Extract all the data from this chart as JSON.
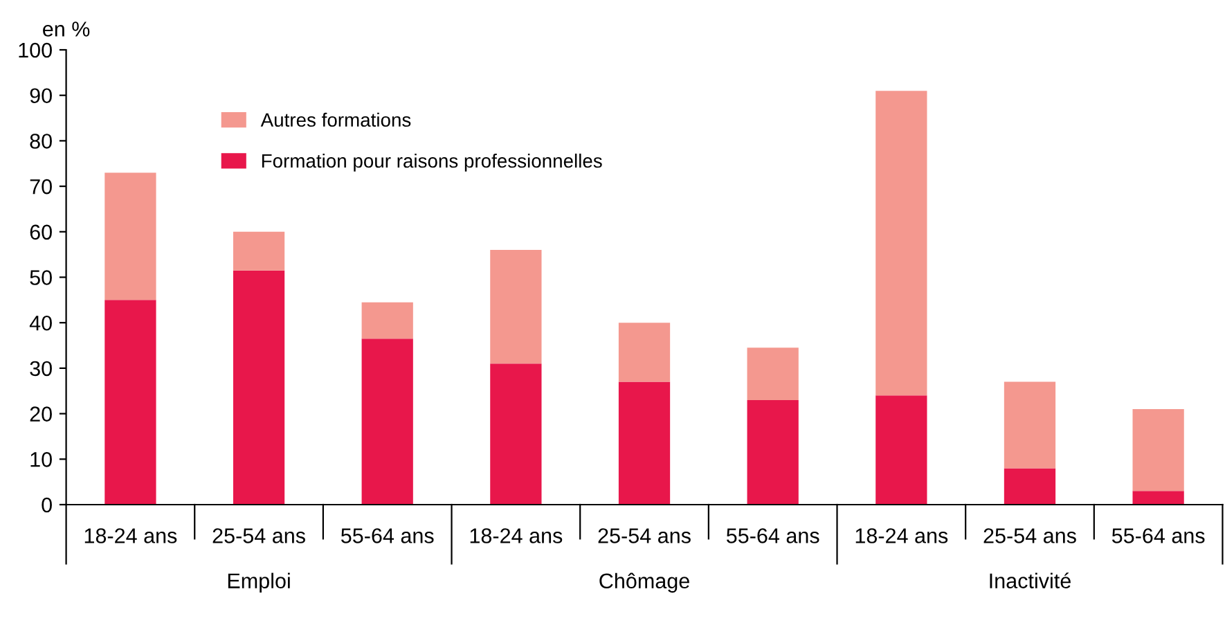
{
  "chart_data": {
    "type": "bar",
    "stacked": true,
    "ylabel": "en %",
    "categories": [
      "18-24 ans",
      "25-54 ans",
      "55-64 ans",
      "18-24 ans",
      "25-54 ans",
      "55-64 ans",
      "18-24 ans",
      "25-54 ans",
      "55-64 ans"
    ],
    "series": [
      {
        "name": "Formation pour raisons professionnelles",
        "color": "#e8174b",
        "values": [
          45,
          51.5,
          36.5,
          31,
          27,
          23,
          24,
          8,
          3
        ]
      },
      {
        "name": "Autres formations",
        "color": "#f4988f",
        "values": [
          28,
          8.5,
          8,
          25,
          13,
          11.5,
          67,
          19,
          18
        ]
      }
    ],
    "annotations": [
      "Emploi",
      "Chômage",
      "Inactivité"
    ],
    "ylim": [
      0,
      100
    ],
    "yticks": [
      0,
      10,
      20,
      30,
      40,
      50,
      60,
      70,
      80,
      90,
      100
    ],
    "grid": false,
    "legend": "top left"
  }
}
